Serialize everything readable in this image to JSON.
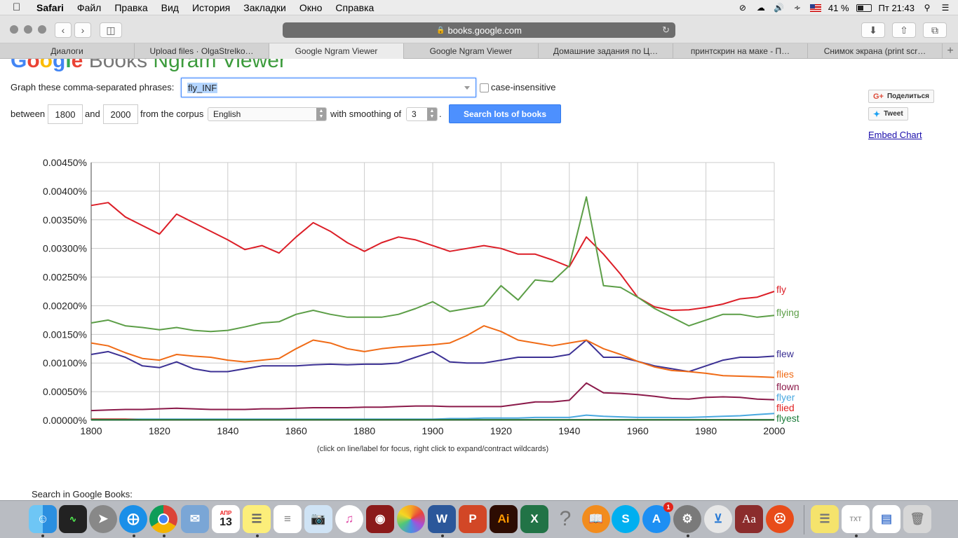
{
  "menubar": {
    "apple_icon": "apple-icon",
    "items": [
      "Safari",
      "Файл",
      "Правка",
      "Вид",
      "История",
      "Закладки",
      "Окно",
      "Справка"
    ],
    "battery_percent": "41 %",
    "clock": "Пт 21:43"
  },
  "toolbar": {
    "url": "books.google.com"
  },
  "tabs": [
    {
      "label": "Диалоги",
      "active": false
    },
    {
      "label": "Upload files · OlgaStrelko…",
      "active": false
    },
    {
      "label": "Google Ngram Viewer",
      "active": true
    },
    {
      "label": "Google Ngram Viewer",
      "active": false
    },
    {
      "label": "Домашние задания по Ц…",
      "active": false
    },
    {
      "label": "принтскрин на маке - П…",
      "active": false
    },
    {
      "label": "Снимок экрана (print scr…",
      "active": false
    }
  ],
  "header": {
    "logo_parts": {
      "g1": "G",
      "g2": "o",
      "g3": "o",
      "g4": "g",
      "g5": "l",
      "g6": "e",
      "books": " Books ",
      "ngram": "Ngram Viewer"
    }
  },
  "form": {
    "phrases_label": "Graph these comma-separated phrases:",
    "phrases_value": "fly_INF",
    "case_label": "case-insensitive",
    "case_checked": false,
    "between_label": "between",
    "year_start": "1800",
    "and_label": "and",
    "year_end": "2000",
    "corpus_label": "from the corpus",
    "corpus_value": "English",
    "smoothing_label": "with smoothing of",
    "smoothing_value": "3",
    "period": ".",
    "search_button": "Search lots of books"
  },
  "social": {
    "share_label": "Поделиться",
    "tweet_label": "Tweet",
    "embed_label": "Embed Chart"
  },
  "hint": "(click on line/label for focus, right click to expand/contract wildcards)",
  "search_books_label": "Search in Google Books:",
  "chart_data": {
    "type": "line",
    "x": [
      1800,
      1805,
      1810,
      1815,
      1820,
      1825,
      1830,
      1835,
      1840,
      1845,
      1850,
      1855,
      1860,
      1865,
      1870,
      1875,
      1880,
      1885,
      1890,
      1895,
      1900,
      1905,
      1910,
      1915,
      1920,
      1925,
      1930,
      1935,
      1940,
      1945,
      1950,
      1955,
      1960,
      1965,
      1970,
      1975,
      1980,
      1985,
      1990,
      1995,
      2000
    ],
    "xlim": [
      1800,
      2000
    ],
    "ylim": [
      0,
      0.0045
    ],
    "x_ticks": [
      "1800",
      "1820",
      "1840",
      "1860",
      "1880",
      "1900",
      "1920",
      "1940",
      "1960",
      "1980",
      "2000"
    ],
    "y_ticks": [
      "0.00000%",
      "0.00050%",
      "0.00100%",
      "0.00150%",
      "0.00200%",
      "0.00250%",
      "0.00300%",
      "0.00350%",
      "0.00400%",
      "0.00450%"
    ],
    "y_tick_values": [
      0,
      0.0005,
      0.001,
      0.0015,
      0.002,
      0.0025,
      0.003,
      0.0035,
      0.004,
      0.0045
    ],
    "grid": true,
    "legend": "right-end labels",
    "series": [
      {
        "name": "fly",
        "color": "#dc1e27",
        "values": [
          0.00375,
          0.0038,
          0.00355,
          0.0034,
          0.00325,
          0.0036,
          0.00345,
          0.0033,
          0.00315,
          0.00298,
          0.00305,
          0.00292,
          0.0032,
          0.00345,
          0.0033,
          0.0031,
          0.00295,
          0.0031,
          0.0032,
          0.00315,
          0.00305,
          0.00295,
          0.003,
          0.00305,
          0.003,
          0.0029,
          0.0029,
          0.0028,
          0.00268,
          0.0032,
          0.0029,
          0.00255,
          0.00215,
          0.00198,
          0.00192,
          0.00193,
          0.00197,
          0.00203,
          0.00212,
          0.00215,
          0.00225
        ]
      },
      {
        "name": "flying",
        "color": "#5c9e47",
        "values": [
          0.0017,
          0.00175,
          0.00165,
          0.00162,
          0.00158,
          0.00162,
          0.00157,
          0.00155,
          0.00157,
          0.00163,
          0.0017,
          0.00172,
          0.00185,
          0.00192,
          0.00185,
          0.0018,
          0.0018,
          0.0018,
          0.00185,
          0.00195,
          0.00207,
          0.0019,
          0.00195,
          0.002,
          0.00235,
          0.0021,
          0.00245,
          0.00242,
          0.0027,
          0.0039,
          0.00235,
          0.00232,
          0.00215,
          0.00195,
          0.0018,
          0.00165,
          0.00175,
          0.00185,
          0.00185,
          0.0018,
          0.00183
        ]
      },
      {
        "name": "flew",
        "color": "#3c3194",
        "values": [
          0.00115,
          0.0012,
          0.0011,
          0.00095,
          0.00092,
          0.00102,
          0.0009,
          0.00085,
          0.00085,
          0.0009,
          0.00095,
          0.00095,
          0.00095,
          0.00097,
          0.00098,
          0.00097,
          0.00098,
          0.00098,
          0.001,
          0.0011,
          0.0012,
          0.00102,
          0.001,
          0.001,
          0.00105,
          0.0011,
          0.0011,
          0.0011,
          0.00115,
          0.0014,
          0.0011,
          0.0011,
          0.00103,
          0.00095,
          0.0009,
          0.00085,
          0.00095,
          0.00105,
          0.0011,
          0.0011,
          0.00112
        ]
      },
      {
        "name": "flies",
        "color": "#f06b16",
        "values": [
          0.00135,
          0.0013,
          0.00118,
          0.00108,
          0.00105,
          0.00115,
          0.00112,
          0.0011,
          0.00105,
          0.00102,
          0.00105,
          0.00108,
          0.00125,
          0.0014,
          0.00135,
          0.00125,
          0.0012,
          0.00125,
          0.00128,
          0.0013,
          0.00132,
          0.00135,
          0.00148,
          0.00165,
          0.00155,
          0.0014,
          0.00135,
          0.0013,
          0.00135,
          0.0014,
          0.00125,
          0.00115,
          0.00103,
          0.00093,
          0.00087,
          0.00085,
          0.00082,
          0.00078,
          0.00077,
          0.00076,
          0.00075
        ]
      },
      {
        "name": "flown",
        "color": "#8b1a4a",
        "values": [
          0.00017,
          0.00018,
          0.00019,
          0.00019,
          0.0002,
          0.00021,
          0.0002,
          0.00019,
          0.00019,
          0.00019,
          0.0002,
          0.0002,
          0.00021,
          0.00022,
          0.00022,
          0.00022,
          0.00023,
          0.00023,
          0.00024,
          0.00025,
          0.00025,
          0.00024,
          0.00024,
          0.00024,
          0.00024,
          0.00028,
          0.00032,
          0.00032,
          0.00035,
          0.00065,
          0.00048,
          0.00047,
          0.00045,
          0.00042,
          0.00038,
          0.00037,
          0.0004,
          0.00041,
          0.0004,
          0.00037,
          0.00036
        ]
      },
      {
        "name": "flyer",
        "color": "#49a8e0",
        "values": [
          2e-05,
          2e-05,
          2e-05,
          2e-05,
          2e-05,
          2e-05,
          2e-05,
          2e-05,
          2e-05,
          2e-05,
          2e-05,
          2e-05,
          2e-05,
          2e-05,
          2e-05,
          2e-05,
          2e-05,
          2e-05,
          2e-05,
          2e-05,
          2e-05,
          3e-05,
          3e-05,
          4e-05,
          4e-05,
          4e-05,
          5e-05,
          5e-05,
          5e-05,
          9e-05,
          7e-05,
          6e-05,
          5e-05,
          5e-05,
          5e-05,
          5e-05,
          6e-05,
          7e-05,
          8e-05,
          0.0001,
          0.00012
        ]
      },
      {
        "name": "flied",
        "color": "#e02020",
        "values": [
          2e-05,
          2e-05,
          2e-05,
          1e-05,
          1e-05,
          1e-05,
          1e-05,
          1e-05,
          1e-05,
          1e-05,
          1e-05,
          1e-05,
          1e-05,
          1e-05,
          1e-05,
          1e-05,
          1e-05,
          1e-05,
          1e-05,
          1e-05,
          1e-05,
          1e-05,
          1e-05,
          1e-05,
          1e-05,
          1e-05,
          1e-05,
          1e-05,
          1e-05,
          1e-05,
          1e-05,
          1e-05,
          1e-05,
          1e-05,
          1e-05,
          1e-05,
          1e-05,
          1e-05,
          1e-05,
          1e-05,
          1e-05
        ]
      },
      {
        "name": "flyest",
        "color": "#1b7c3a",
        "values": [
          1e-05,
          1e-05,
          1e-05,
          1e-05,
          1e-05,
          1e-05,
          1e-05,
          1e-05,
          1e-05,
          1e-05,
          1e-05,
          1e-05,
          1e-05,
          1e-05,
          1e-05,
          1e-05,
          1e-05,
          1e-05,
          1e-05,
          1e-05,
          1e-05,
          1e-05,
          1e-05,
          1e-05,
          1e-05,
          1e-05,
          1e-05,
          1e-05,
          1e-05,
          1e-05,
          1e-05,
          1e-05,
          1e-05,
          1e-05,
          1e-05,
          1e-05,
          1e-05,
          1e-05,
          1e-05,
          1e-05,
          1e-05
        ]
      }
    ]
  },
  "dock": {
    "icons": [
      "finder-icon",
      "activity-monitor-icon",
      "launchpad-icon",
      "safari-icon",
      "chrome-icon",
      "mail-icon",
      "calendar-icon",
      "notes-icon",
      "reminders-icon",
      "preview-icon",
      "itunes-icon",
      "photo-booth-icon",
      "photos-icon",
      "word-icon",
      "powerpoint-icon",
      "illustrator-icon",
      "excel-icon",
      "help-icon",
      "ibooks-icon",
      "skype-icon",
      "app-store-icon",
      "system-preferences-icon",
      "airport-utility-icon",
      "dictionary-icon",
      "hotspot-shield-icon",
      "document-icon",
      "text-file-icon",
      "screenshot-icon",
      "trash-icon"
    ],
    "calendar_month": "АПР",
    "calendar_day": "13",
    "app_store_badge": "1"
  }
}
